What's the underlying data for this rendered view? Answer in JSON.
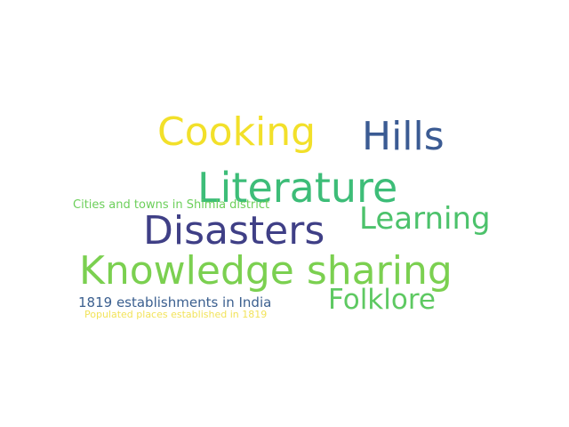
{
  "words": [
    {
      "key": "cooking",
      "text": "Cooking",
      "color": "#f2e02a"
    },
    {
      "key": "hills",
      "text": "Hills",
      "color": "#3b5b93"
    },
    {
      "key": "literature",
      "text": "Literature",
      "color": "#3dbd78"
    },
    {
      "key": "cities",
      "text": "Cities and towns in Shimla district",
      "color": "#6ccf5a"
    },
    {
      "key": "learning",
      "text": "Learning",
      "color": "#4cc26b"
    },
    {
      "key": "disasters",
      "text": "Disasters",
      "color": "#3f3f86"
    },
    {
      "key": "knowledge",
      "text": "Knowledge sharing",
      "color": "#7bd050"
    },
    {
      "key": "folklore",
      "text": "Folklore",
      "color": "#5ec962"
    },
    {
      "key": "establishments",
      "text": "1819 establishments in India",
      "color": "#3b5f8f"
    },
    {
      "key": "populated",
      "text": "Populated places established in 1819",
      "color": "#f2e35a"
    }
  ]
}
